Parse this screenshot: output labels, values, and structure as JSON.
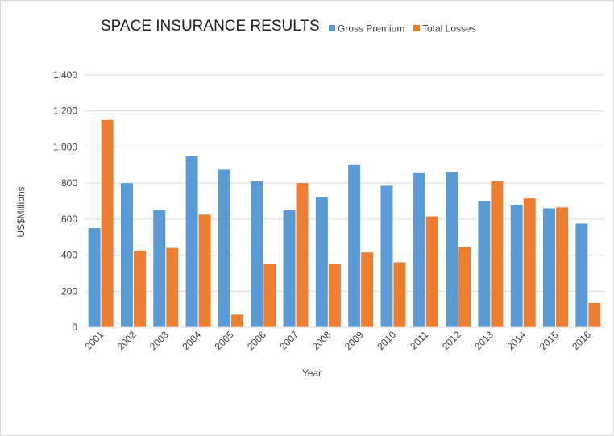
{
  "chart_data": {
    "type": "bar",
    "title": "SPACE INSURANCE RESULTS",
    "xlabel": "Year",
    "ylabel": "US$Millions",
    "categories": [
      "2001",
      "2002",
      "2003",
      "2004",
      "2005",
      "2006",
      "2007",
      "2008",
      "2009",
      "2010",
      "2011",
      "2012",
      "2013",
      "2014",
      "2015",
      "2016"
    ],
    "series": [
      {
        "name": "Gross Premium",
        "color": "#5B9BD5",
        "values": [
          550,
          800,
          650,
          950,
          875,
          810,
          650,
          720,
          900,
          785,
          855,
          860,
          700,
          680,
          660,
          575
        ]
      },
      {
        "name": "Total Losses",
        "color": "#ED7D31",
        "values": [
          1150,
          425,
          440,
          625,
          70,
          350,
          800,
          350,
          415,
          360,
          615,
          445,
          810,
          715,
          665,
          135
        ]
      }
    ],
    "ylim": [
      0,
      1400
    ],
    "yticks": [
      0,
      200,
      400,
      600,
      800,
      1000,
      1200,
      1400
    ],
    "ytick_labels": [
      "0",
      "200",
      "400",
      "600",
      "800",
      "1,000",
      "1,200",
      "1,400"
    ],
    "grid": true,
    "legend_position": "top-right"
  }
}
